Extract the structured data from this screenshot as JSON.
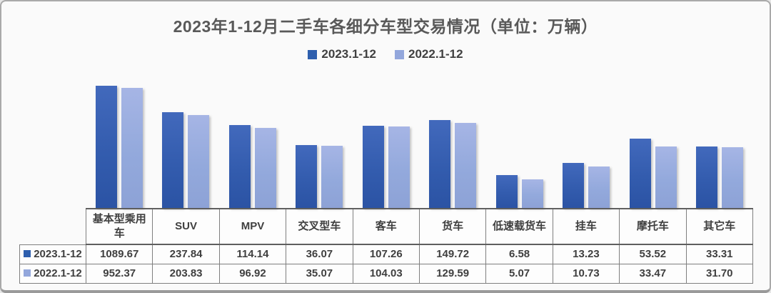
{
  "card": {
    "title": "2023年1-12月二手车各细分车型交易情况（单位：万辆）"
  },
  "colors": {
    "series_2023": "#2e5fae",
    "series_2022": "#93a7dc",
    "title_text": "#595959",
    "table_text": "#3f3f3f",
    "table_border": "#7f7f7f"
  },
  "chart_data": {
    "type": "bar",
    "title": "2023年1-12月二手车各细分车型交易情况",
    "unit": "万辆",
    "scale": "log10",
    "grid": false,
    "legend_position": "top",
    "value_axis_min": 1,
    "categories": [
      "基本型乘用车",
      "SUV",
      "MPV",
      "交叉型车",
      "客车",
      "货车",
      "低速载货车",
      "挂车",
      "摩托车",
      "其它车"
    ],
    "series": [
      {
        "name": "2023.1-12",
        "color": "#2e5fae",
        "values": [
          1089.67,
          237.84,
          114.14,
          36.07,
          107.26,
          149.72,
          6.58,
          13.23,
          53.52,
          33.31
        ]
      },
      {
        "name": "2022.1-12",
        "color": "#93a7dc",
        "values": [
          952.37,
          203.83,
          96.92,
          35.07,
          104.03,
          129.59,
          5.07,
          10.73,
          33.47,
          31.7
        ]
      }
    ]
  }
}
